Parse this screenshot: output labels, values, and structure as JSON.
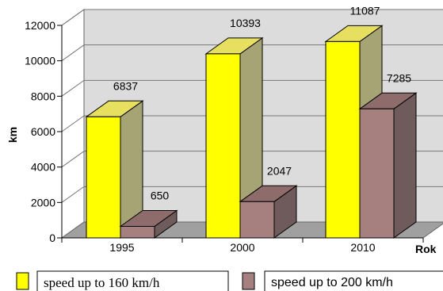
{
  "chart_data": {
    "type": "bar",
    "categories": [
      "1995",
      "2000",
      "2010"
    ],
    "series": [
      {
        "name": "speed up to 160 km/h",
        "values": [
          6837,
          10393,
          11087
        ],
        "color": "#ffff00",
        "side_color": "#a6a374",
        "top_color": "#e6df60"
      },
      {
        "name": "speed up to 200 km/h",
        "values": [
          650,
          2047,
          7285
        ],
        "color": "#a67f7f",
        "side_color": "#6f5b5b",
        "top_color": "#8f6c6c"
      }
    ],
    "ylabel": "km",
    "xlabel": "Rok",
    "ylim": [
      0,
      12000
    ],
    "yticks": [
      "0",
      "2000",
      "4000",
      "6000",
      "8000",
      "10000",
      "12000"
    ],
    "grid": true,
    "legend_position": "bottom"
  }
}
